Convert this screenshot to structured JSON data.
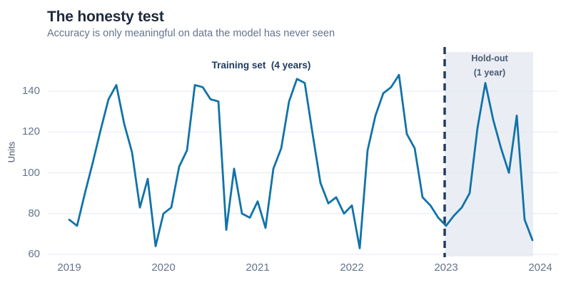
{
  "header": {
    "title": "The honesty test",
    "subtitle": "Accuracy is only meaningful on data the model has never seen"
  },
  "annotations": {
    "training_label": "Training set  (4 years)",
    "holdout_line1": "Hold-out",
    "holdout_line2": "(1 year)"
  },
  "chart_data": {
    "type": "line",
    "title": "The honesty test",
    "subtitle": "Accuracy is only meaningful on data the model has never seen",
    "xlabel": "",
    "ylabel": "Units",
    "x_tick_labels": [
      "2019",
      "2020",
      "2021",
      "2022",
      "2023",
      "2024"
    ],
    "y_tick_labels": [
      "140",
      "120",
      "100",
      "80",
      "60"
    ],
    "y_ticks": [
      60,
      80,
      100,
      120,
      140
    ],
    "ylim": [
      55,
      152
    ],
    "xlim": [
      2019,
      2024
    ],
    "grid": "horizontal",
    "frequency": "monthly",
    "x_start": "2019-01",
    "x_end": "2023-12",
    "series": [
      {
        "name": "Units",
        "values": [
          77,
          74,
          90,
          105,
          121,
          136,
          143,
          124,
          110,
          83,
          97,
          64,
          80,
          83,
          103,
          111,
          143,
          142,
          136,
          135,
          72,
          102,
          80,
          78,
          86,
          73,
          102,
          112,
          135,
          146,
          144,
          119,
          95,
          85,
          88,
          80,
          84,
          63,
          111,
          128,
          139,
          142,
          148,
          119,
          112,
          88,
          84,
          78,
          74,
          79,
          83,
          90,
          122,
          144,
          126,
          112,
          100,
          128,
          77,
          67
        ]
      }
    ],
    "regions": {
      "training": {
        "label": "Training set (4 years)",
        "x_start": 2019,
        "x_end": 2023
      },
      "holdout": {
        "label": "Hold-out (1 year)",
        "x_start": 2023,
        "x_end": 2024
      }
    },
    "divider_x": 2023,
    "colors": {
      "line": "#1173a9",
      "holdout_band": "#eaeef4",
      "divider": "#1e3a5f",
      "grid": "#e3e8f0",
      "title": "#1e293b",
      "subtitle": "#64748b",
      "tick_text": "#64748b",
      "training_text": "#1e3a5f",
      "holdout_text": "#4a5a74",
      "background": "#ffffff"
    }
  }
}
